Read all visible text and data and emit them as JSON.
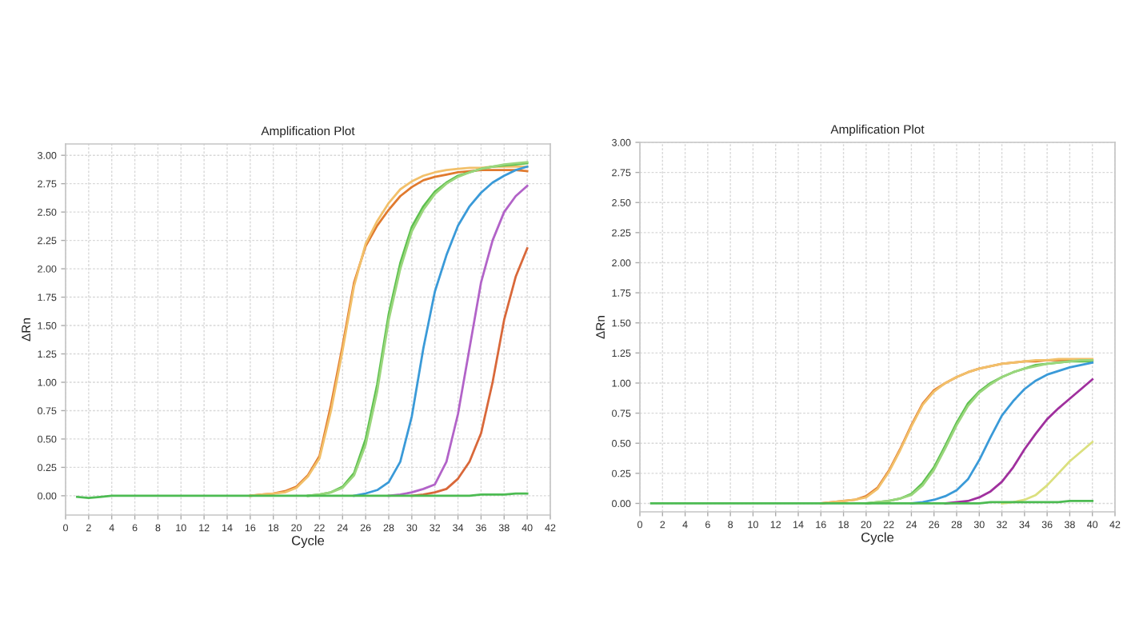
{
  "chart_data": [
    {
      "type": "line",
      "title": "Amplification Plot",
      "xlabel": "Cycle",
      "ylabel": "ΔRn",
      "x": [
        1,
        2,
        3,
        4,
        5,
        6,
        7,
        8,
        9,
        10,
        11,
        12,
        13,
        14,
        15,
        16,
        17,
        18,
        19,
        20,
        21,
        22,
        23,
        24,
        25,
        26,
        27,
        28,
        29,
        30,
        31,
        32,
        33,
        34,
        35,
        36,
        37,
        38,
        39,
        40
      ],
      "xlim": [
        0,
        42
      ],
      "xticks": [
        0,
        2,
        4,
        6,
        8,
        10,
        12,
        14,
        16,
        18,
        20,
        22,
        24,
        26,
        28,
        30,
        32,
        34,
        36,
        38,
        40,
        42
      ],
      "ylim": [
        -0.17,
        3.1
      ],
      "yticks": [
        {
          "value": 0,
          "label": "0.00"
        },
        {
          "value": 0.25,
          "label": "0.25"
        },
        {
          "value": 0.5,
          "label": "0.50"
        },
        {
          "value": 0.75,
          "label": "0.75"
        },
        {
          "value": 1,
          "label": "1.00"
        },
        {
          "value": 1.25,
          "label": "1.25"
        },
        {
          "value": 1.5,
          "label": "1.50"
        },
        {
          "value": 1.75,
          "label": "1.75"
        },
        {
          "value": 2,
          "label": "2.00"
        },
        {
          "value": 2.25,
          "label": "2.25"
        },
        {
          "value": 2.5,
          "label": "2.50"
        },
        {
          "value": 2.75,
          "label": "2.75"
        },
        {
          "value": 3,
          "label": "3.00"
        }
      ],
      "grid": true,
      "series": [
        {
          "color": "#e07a2e",
          "values": [
            null,
            null,
            null,
            null,
            null,
            null,
            null,
            null,
            null,
            null,
            null,
            null,
            null,
            null,
            null,
            0,
            0.01,
            0.02,
            0.04,
            0.08,
            0.18,
            0.35,
            0.8,
            1.32,
            1.88,
            2.2,
            2.38,
            2.52,
            2.64,
            2.72,
            2.78,
            2.81,
            2.83,
            2.85,
            2.86,
            2.87,
            2.87,
            2.87,
            2.87,
            2.86
          ]
        },
        {
          "color": "#f2c06a",
          "values": [
            null,
            null,
            null,
            null,
            null,
            null,
            null,
            null,
            null,
            null,
            null,
            null,
            null,
            null,
            null,
            0,
            0.01,
            0.02,
            0.03,
            0.07,
            0.17,
            0.33,
            0.75,
            1.28,
            1.85,
            2.22,
            2.42,
            2.58,
            2.7,
            2.77,
            2.82,
            2.85,
            2.87,
            2.88,
            2.89,
            2.89,
            2.9,
            2.9,
            2.9,
            2.9
          ]
        },
        {
          "color": "#5cc04e",
          "values": [
            null,
            null,
            null,
            null,
            null,
            null,
            null,
            null,
            null,
            null,
            null,
            null,
            null,
            null,
            null,
            null,
            null,
            null,
            null,
            null,
            0,
            0.01,
            0.03,
            0.08,
            0.2,
            0.5,
            0.98,
            1.6,
            2.05,
            2.37,
            2.55,
            2.68,
            2.76,
            2.82,
            2.85,
            2.88,
            2.9,
            2.91,
            2.92,
            2.93
          ]
        },
        {
          "color": "#9ad67c",
          "values": [
            null,
            null,
            null,
            null,
            null,
            null,
            null,
            null,
            null,
            null,
            null,
            null,
            null,
            null,
            null,
            null,
            null,
            null,
            null,
            null,
            0,
            0.01,
            0.03,
            0.07,
            0.18,
            0.45,
            0.92,
            1.55,
            2.0,
            2.33,
            2.52,
            2.66,
            2.75,
            2.81,
            2.85,
            2.88,
            2.9,
            2.92,
            2.93,
            2.94
          ]
        },
        {
          "color": "#3a9ad8",
          "values": [
            null,
            null,
            null,
            null,
            null,
            null,
            null,
            null,
            null,
            null,
            null,
            null,
            null,
            null,
            null,
            null,
            null,
            null,
            null,
            null,
            null,
            null,
            null,
            null,
            0,
            0.02,
            0.05,
            0.12,
            0.3,
            0.7,
            1.3,
            1.8,
            2.12,
            2.38,
            2.55,
            2.67,
            2.76,
            2.82,
            2.87,
            2.9
          ]
        },
        {
          "color": "#b263c8",
          "values": [
            null,
            null,
            null,
            null,
            null,
            null,
            null,
            null,
            null,
            null,
            null,
            null,
            null,
            null,
            null,
            null,
            null,
            null,
            null,
            null,
            null,
            null,
            null,
            null,
            null,
            null,
            null,
            0,
            0.01,
            0.03,
            0.06,
            0.1,
            0.3,
            0.72,
            1.3,
            1.88,
            2.25,
            2.5,
            2.64,
            2.73
          ]
        },
        {
          "color": "#d9683a",
          "values": [
            null,
            null,
            null,
            null,
            null,
            null,
            null,
            null,
            null,
            null,
            null,
            null,
            null,
            null,
            null,
            null,
            null,
            null,
            null,
            null,
            null,
            null,
            null,
            null,
            null,
            null,
            null,
            null,
            null,
            0,
            0.01,
            0.03,
            0.06,
            0.15,
            0.3,
            0.55,
            1.0,
            1.55,
            1.93,
            2.18
          ]
        },
        {
          "color": "#4cbb52",
          "values": [
            -0.01,
            -0.02,
            -0.01,
            0,
            0,
            0,
            0,
            0,
            0,
            0,
            0,
            0,
            0,
            0,
            0,
            0,
            0,
            0,
            0,
            0,
            0,
            0,
            0,
            0,
            0,
            0,
            0,
            0,
            0,
            0,
            0,
            0,
            0,
            0,
            0,
            0.01,
            0.01,
            0.01,
            0.02,
            0.02
          ]
        }
      ]
    },
    {
      "type": "line",
      "title": "Amplification Plot",
      "xlabel": "Cycle",
      "ylabel": "ΔRn",
      "x": [
        1,
        2,
        3,
        4,
        5,
        6,
        7,
        8,
        9,
        10,
        11,
        12,
        13,
        14,
        15,
        16,
        17,
        18,
        19,
        20,
        21,
        22,
        23,
        24,
        25,
        26,
        27,
        28,
        29,
        30,
        31,
        32,
        33,
        34,
        35,
        36,
        37,
        38,
        39,
        40
      ],
      "xlim": [
        0,
        42
      ],
      "xticks": [
        0,
        2,
        4,
        6,
        8,
        10,
        12,
        14,
        16,
        18,
        20,
        22,
        24,
        26,
        28,
        30,
        32,
        34,
        36,
        38,
        40,
        42
      ],
      "ylim": [
        -0.07,
        3.0
      ],
      "yticks": [
        {
          "value": 0,
          "label": "0.00"
        },
        {
          "value": 0.25,
          "label": "0.25"
        },
        {
          "value": 0.5,
          "label": "0.50"
        },
        {
          "value": 0.75,
          "label": "0.75"
        },
        {
          "value": 1,
          "label": "1.00"
        },
        {
          "value": 1.25,
          "label": "1.25"
        },
        {
          "value": 1.5,
          "label": "1.50"
        },
        {
          "value": 1.75,
          "label": "1.75"
        },
        {
          "value": 2,
          "label": "2.00"
        },
        {
          "value": 2.25,
          "label": "2.25"
        },
        {
          "value": 2.5,
          "label": "2.50"
        },
        {
          "value": 2.75,
          "label": "2.75"
        },
        {
          "value": 3,
          "label": "3.00"
        }
      ],
      "grid": true,
      "series": [
        {
          "color": "#e07a2e",
          "values": [
            null,
            null,
            null,
            null,
            null,
            null,
            null,
            null,
            null,
            null,
            null,
            null,
            null,
            null,
            null,
            0,
            0.01,
            0.02,
            0.03,
            0.06,
            0.13,
            0.27,
            0.45,
            0.65,
            0.83,
            0.94,
            1.0,
            1.05,
            1.09,
            1.12,
            1.14,
            1.16,
            1.17,
            1.18,
            1.18,
            1.19,
            1.19,
            1.19,
            1.19,
            1.19
          ]
        },
        {
          "color": "#f2c06a",
          "values": [
            null,
            null,
            null,
            null,
            null,
            null,
            null,
            null,
            null,
            null,
            null,
            null,
            null,
            null,
            null,
            0,
            0.01,
            0.02,
            0.03,
            0.05,
            0.12,
            0.26,
            0.44,
            0.64,
            0.82,
            0.93,
            1.0,
            1.05,
            1.09,
            1.12,
            1.14,
            1.16,
            1.17,
            1.18,
            1.19,
            1.19,
            1.2,
            1.2,
            1.2,
            1.2
          ]
        },
        {
          "color": "#5cc04e",
          "values": [
            null,
            null,
            null,
            null,
            null,
            null,
            null,
            null,
            null,
            null,
            null,
            null,
            null,
            null,
            null,
            null,
            null,
            null,
            null,
            0,
            0.01,
            0.02,
            0.04,
            0.08,
            0.17,
            0.3,
            0.48,
            0.67,
            0.83,
            0.93,
            1.0,
            1.05,
            1.09,
            1.12,
            1.15,
            1.16,
            1.17,
            1.18,
            1.18,
            1.18
          ]
        },
        {
          "color": "#9ad67c",
          "values": [
            null,
            null,
            null,
            null,
            null,
            null,
            null,
            null,
            null,
            null,
            null,
            null,
            null,
            null,
            null,
            null,
            null,
            null,
            null,
            0,
            0.01,
            0.02,
            0.04,
            0.07,
            0.15,
            0.28,
            0.46,
            0.65,
            0.81,
            0.92,
            0.99,
            1.05,
            1.09,
            1.12,
            1.14,
            1.16,
            1.17,
            1.18,
            1.19,
            1.19
          ]
        },
        {
          "color": "#3a9ad8",
          "values": [
            null,
            null,
            null,
            null,
            null,
            null,
            null,
            null,
            null,
            null,
            null,
            null,
            null,
            null,
            null,
            null,
            null,
            null,
            null,
            null,
            null,
            null,
            null,
            0,
            0.01,
            0.03,
            0.06,
            0.11,
            0.2,
            0.36,
            0.55,
            0.73,
            0.85,
            0.95,
            1.02,
            1.07,
            1.1,
            1.13,
            1.15,
            1.17
          ]
        },
        {
          "color": "#a0309e",
          "values": [
            null,
            null,
            null,
            null,
            null,
            null,
            null,
            null,
            null,
            null,
            null,
            null,
            null,
            null,
            null,
            null,
            null,
            null,
            null,
            null,
            null,
            null,
            null,
            null,
            null,
            null,
            0,
            0.01,
            0.02,
            0.05,
            0.1,
            0.18,
            0.3,
            0.45,
            0.58,
            0.7,
            0.79,
            0.87,
            0.95,
            1.03
          ]
        },
        {
          "color": "#dbe07e",
          "values": [
            null,
            null,
            null,
            null,
            null,
            null,
            null,
            null,
            null,
            null,
            null,
            null,
            null,
            null,
            null,
            null,
            null,
            null,
            null,
            null,
            null,
            null,
            null,
            null,
            null,
            null,
            null,
            null,
            null,
            null,
            null,
            0,
            0.01,
            0.03,
            0.07,
            0.15,
            0.25,
            0.35,
            0.43,
            0.51
          ]
        },
        {
          "color": "#4cbb52",
          "values": [
            0,
            0,
            0,
            0,
            0,
            0,
            0,
            0,
            0,
            0,
            0,
            0,
            0,
            0,
            0,
            0,
            0,
            0,
            0,
            0,
            0,
            0,
            0,
            0,
            0,
            0,
            0,
            0,
            0,
            0,
            0.01,
            0.01,
            0.01,
            0.01,
            0.01,
            0.01,
            0.01,
            0.02,
            0.02,
            0.02
          ]
        }
      ]
    }
  ]
}
